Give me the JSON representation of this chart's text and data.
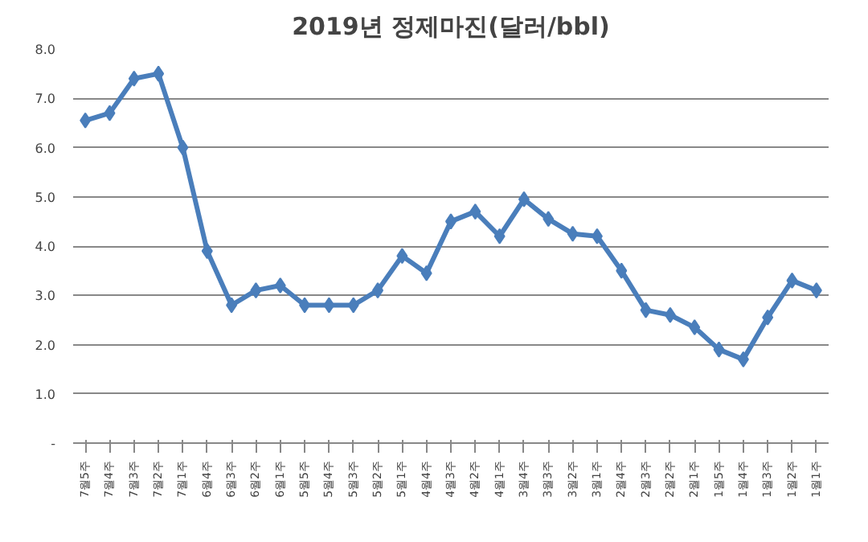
{
  "chart_data": {
    "type": "line",
    "title": "2019년 정제마진(달러/bbl)",
    "categories": [
      "7월5주",
      "7월4주",
      "7월3주",
      "7월2주",
      "7월1주",
      "6월4주",
      "6월3주",
      "6월2주",
      "6월1주",
      "5월5주",
      "5월4주",
      "5월3주",
      "5월2주",
      "5월1주",
      "4월4주",
      "4월3주",
      "4월2주",
      "4월1주",
      "3월4주",
      "3월3주",
      "3월2주",
      "3월1주",
      "2월4주",
      "2월3주",
      "2월2주",
      "2월1주",
      "1월5주",
      "1월4주",
      "1월3주",
      "1월2주",
      "1월1주"
    ],
    "series": [
      {
        "color": "#4a7ebb",
        "values": [
          6.55,
          6.7,
          7.4,
          7.5,
          6.0,
          3.9,
          2.8,
          3.1,
          3.2,
          2.8,
          2.8,
          2.8,
          3.1,
          3.8,
          3.45,
          4.5,
          4.7,
          4.2,
          4.95,
          4.55,
          4.25,
          4.2,
          3.5,
          2.7,
          2.6,
          2.35,
          1.9,
          1.7,
          2.55,
          3.3,
          3.1
        ]
      }
    ],
    "ylim": [
      0,
      8
    ],
    "yticks": [
      {
        "value": 0,
        "label": "-"
      },
      {
        "value": 1,
        "label": "1.0"
      },
      {
        "value": 2,
        "label": "2.0"
      },
      {
        "value": 3,
        "label": "3.0"
      },
      {
        "value": 4,
        "label": "4.0"
      },
      {
        "value": 5,
        "label": "5.0"
      },
      {
        "value": 6,
        "label": "6.0"
      },
      {
        "value": 7,
        "label": "7.0"
      },
      {
        "value": 8,
        "label": "8.0"
      }
    ],
    "grid": "y",
    "marker": "diamond",
    "line_style": "solid"
  }
}
